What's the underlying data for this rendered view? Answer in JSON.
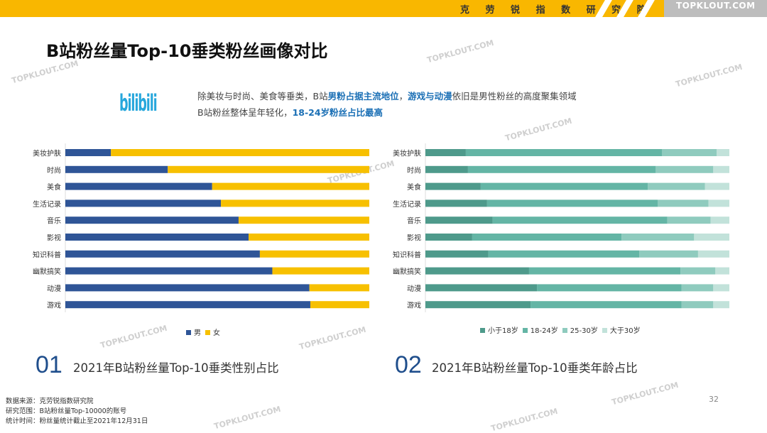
{
  "header": {
    "institute": "克 劳 锐 指 数 研 究 院",
    "brand": "TOPKLOUT.COM"
  },
  "title": "B站粉丝量Top-10垂类粉丝画像对比",
  "logo": "bilibili",
  "description": {
    "line1_a": "除美妆与时尚、美食等垂类，B站",
    "line1_b": "男粉占据主流地位",
    "line1_c": "，",
    "line1_d": "游戏与动漫",
    "line1_e": "依旧是男性粉丝的高度聚集领域",
    "line2_a": "B站粉丝整体呈年轻化，",
    "line2_b": "18-24岁粉丝占比最高"
  },
  "watermark": "TOPKLOUT.COM",
  "chart_data": [
    {
      "type": "bar",
      "stacked": true,
      "orientation": "horizontal",
      "title": "2021年B站粉丝量Top-10垂类性别占比",
      "number": "01",
      "categories": [
        "美妆护肤",
        "时尚",
        "美食",
        "生活记录",
        "音乐",
        "影视",
        "知识科普",
        "幽默搞笑",
        "动漫",
        "游戏"
      ],
      "series": [
        {
          "name": "男",
          "color": "#2f5597",
          "values": [
            15.0,
            33.7,
            48.3,
            51.2,
            57.0,
            60.3,
            64.0,
            68.1,
            80.3,
            80.6
          ]
        },
        {
          "name": "女",
          "color": "#f7c000",
          "values": [
            85.0,
            66.3,
            51.7,
            48.8,
            43.0,
            39.7,
            36.0,
            31.9,
            19.7,
            19.4
          ]
        }
      ],
      "xlim": [
        0,
        100
      ],
      "legend": "bottom"
    },
    {
      "type": "bar",
      "stacked": true,
      "orientation": "horizontal",
      "title": "2021年B站粉丝量Top-10垂类年龄占比",
      "number": "02",
      "categories": [
        "美妆护肤",
        "时尚",
        "美食",
        "生活记录",
        "音乐",
        "影视",
        "知识科普",
        "幽默搞笑",
        "动漫",
        "游戏"
      ],
      "series": [
        {
          "name": "小于18岁",
          "color": "#4e9a8b",
          "values": [
            13.3,
            14.0,
            18.2,
            20.3,
            22.1,
            15.4,
            20.7,
            34.1,
            36.7,
            34.6
          ]
        },
        {
          "name": "18-24岁",
          "color": "#64b5a5",
          "values": [
            64.5,
            61.7,
            55.0,
            56.1,
            57.5,
            49.1,
            49.7,
            49.8,
            47.6,
            49.7
          ]
        },
        {
          "name": "25-30岁",
          "color": "#8fcbbe",
          "values": [
            18.0,
            19.0,
            18.8,
            16.7,
            14.2,
            23.9,
            19.3,
            11.5,
            10.4,
            10.4
          ]
        },
        {
          "name": "大于30岁",
          "color": "#c2e2da",
          "values": [
            4.2,
            5.3,
            8.0,
            6.9,
            6.2,
            11.6,
            10.3,
            4.6,
            5.3,
            5.3
          ]
        }
      ],
      "xlim": [
        0,
        100
      ],
      "legend": "bottom"
    }
  ],
  "footer": {
    "source": "数据来源：克劳锐指数研究院",
    "scope": "研究范围：B站粉丝量Top-10000的账号",
    "time": "统计时间：粉丝量统计截止至2021年12月31日",
    "page": "32"
  }
}
